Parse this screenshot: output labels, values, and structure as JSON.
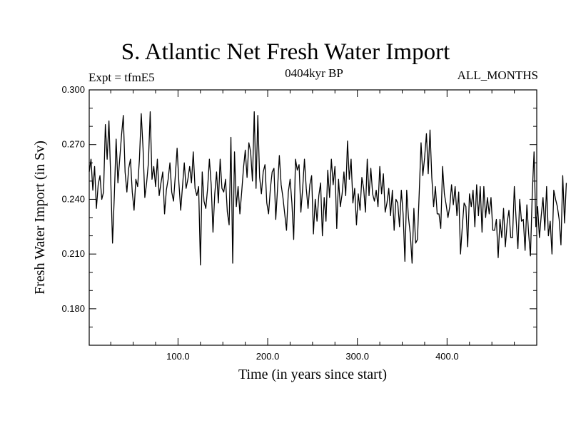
{
  "header": {
    "title": "S. Atlantic Net Fresh Water Import",
    "expt": "Expt = tfmE5",
    "period": "0404kyr BP",
    "months": "ALL_MONTHS"
  },
  "chart_data": {
    "type": "line",
    "title": "S. Atlantic Net Fresh Water Import",
    "xlabel": "Time (in years since start)",
    "ylabel": "Fresh Water Import (in Sv)",
    "xlim": [
      1,
      500
    ],
    "ylim": [
      0.16,
      0.3
    ],
    "xticks": [
      100,
      200,
      300,
      400
    ],
    "xtick_labels": [
      "100.0",
      "200.0",
      "300.0",
      "400.0"
    ],
    "yticks": [
      0.18,
      0.21,
      0.24,
      0.27,
      0.3
    ],
    "ytick_labels": [
      "0.180",
      "0.210",
      "0.240",
      "0.270",
      "0.300"
    ],
    "grid": false,
    "series": [
      {
        "name": "",
        "x_start": 1,
        "x_step": 2,
        "values": [
          0.255,
          0.262,
          0.245,
          0.258,
          0.235,
          0.248,
          0.253,
          0.24,
          0.244,
          0.281,
          0.262,
          0.283,
          0.251,
          0.216,
          0.242,
          0.273,
          0.249,
          0.262,
          0.275,
          0.286,
          0.255,
          0.244,
          0.257,
          0.262,
          0.244,
          0.234,
          0.251,
          0.247,
          0.262,
          0.287,
          0.268,
          0.241,
          0.249,
          0.26,
          0.288,
          0.251,
          0.258,
          0.247,
          0.262,
          0.242,
          0.249,
          0.255,
          0.232,
          0.245,
          0.251,
          0.26,
          0.244,
          0.239,
          0.253,
          0.268,
          0.249,
          0.234,
          0.247,
          0.26,
          0.246,
          0.251,
          0.258,
          0.249,
          0.266,
          0.246,
          0.242,
          0.247,
          0.204,
          0.255,
          0.239,
          0.235,
          0.246,
          0.262,
          0.248,
          0.222,
          0.243,
          0.255,
          0.238,
          0.262,
          0.246,
          0.244,
          0.251,
          0.233,
          0.226,
          0.274,
          0.205,
          0.266,
          0.236,
          0.247,
          0.232,
          0.244,
          0.257,
          0.267,
          0.252,
          0.271,
          0.266,
          0.25,
          0.288,
          0.246,
          0.286,
          0.252,
          0.243,
          0.255,
          0.259,
          0.238,
          0.232,
          0.246,
          0.255,
          0.257,
          0.229,
          0.246,
          0.264,
          0.248,
          0.241,
          0.232,
          0.223,
          0.244,
          0.251,
          0.238,
          0.218,
          0.262,
          0.256,
          0.259,
          0.233,
          0.246,
          0.262,
          0.246,
          0.235,
          0.248,
          0.253,
          0.221,
          0.24,
          0.228,
          0.242,
          0.249,
          0.22,
          0.241,
          0.228,
          0.256,
          0.241,
          0.262,
          0.248,
          0.258,
          0.224,
          0.251,
          0.236,
          0.243,
          0.255,
          0.242,
          0.272,
          0.251,
          0.262,
          0.238,
          0.246,
          0.226,
          0.243,
          0.234,
          0.252,
          0.246,
          0.233,
          0.262,
          0.242,
          0.257,
          0.243,
          0.239,
          0.245,
          0.236,
          0.258,
          0.243,
          0.254,
          0.233,
          0.238,
          0.246,
          0.231,
          0.245,
          0.223,
          0.24,
          0.238,
          0.225,
          0.245,
          0.232,
          0.206,
          0.245,
          0.23,
          0.221,
          0.205,
          0.235,
          0.216,
          0.218,
          0.244,
          0.271,
          0.253,
          0.263,
          0.276,
          0.254,
          0.278,
          0.252,
          0.236,
          0.247,
          0.232,
          0.232,
          0.224,
          0.258,
          0.243,
          0.237,
          0.23,
          0.236,
          0.248,
          0.237,
          0.247,
          0.231,
          0.244,
          0.21,
          0.225,
          0.238,
          0.236,
          0.214,
          0.243,
          0.236,
          0.245,
          0.225,
          0.248,
          0.231,
          0.247,
          0.222,
          0.247,
          0.23,
          0.241,
          0.232,
          0.241,
          0.223,
          0.223,
          0.229,
          0.208,
          0.229,
          0.219,
          0.235,
          0.214,
          0.227,
          0.234,
          0.219,
          0.219,
          0.247,
          0.229,
          0.213,
          0.24,
          0.228,
          0.229,
          0.212,
          0.237,
          0.221,
          0.209,
          0.243,
          0.266,
          0.225,
          0.236,
          0.219,
          0.231,
          0.241,
          0.223,
          0.247,
          0.22,
          0.228,
          0.21,
          0.245,
          0.24,
          0.236,
          0.229,
          0.215,
          0.253,
          0.227,
          0.249
        ]
      }
    ]
  }
}
